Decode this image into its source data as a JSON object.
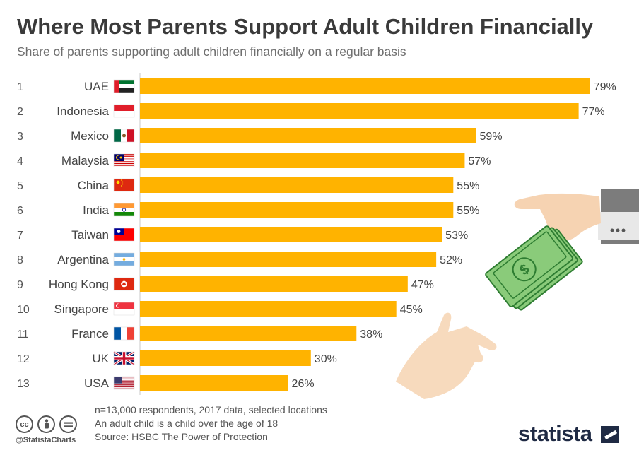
{
  "header": {
    "title": "Where Most Parents Support Adult Children Financially",
    "subtitle": "Share of parents supporting adult children financially on a regular basis"
  },
  "chart_data": {
    "type": "bar",
    "orientation": "horizontal",
    "ranks": [
      "1",
      "2",
      "3",
      "4",
      "5",
      "6",
      "7",
      "8",
      "9",
      "10",
      "11",
      "12",
      "13"
    ],
    "categories": [
      "UAE",
      "Indonesia",
      "Mexico",
      "Malaysia",
      "China",
      "India",
      "Taiwan",
      "Argentina",
      "Hong Kong",
      "Singapore",
      "France",
      "UK",
      "USA"
    ],
    "values": [
      79,
      77,
      59,
      57,
      55,
      55,
      53,
      52,
      47,
      45,
      38,
      30,
      26
    ],
    "value_labels": [
      "79%",
      "77%",
      "59%",
      "57%",
      "55%",
      "55%",
      "53%",
      "52%",
      "47%",
      "45%",
      "38%",
      "30%",
      "26%"
    ],
    "unit": "%",
    "xlim": [
      0,
      100
    ],
    "bar_color": "#FFB300",
    "grid": false,
    "legend": "none",
    "flags": [
      "uae-flag-icon",
      "indonesia-flag-icon",
      "mexico-flag-icon",
      "malaysia-flag-icon",
      "china-flag-icon",
      "india-flag-icon",
      "taiwan-flag-icon",
      "argentina-flag-icon",
      "hong-kong-flag-icon",
      "singapore-flag-icon",
      "france-flag-icon",
      "uk-flag-icon",
      "usa-flag-icon"
    ]
  },
  "footer": {
    "note1": "n=13,000 respondents, 2017 data, selected locations",
    "note2": "An adult child is a child over the age of 18",
    "source": "Source: HSBC The Power of Protection",
    "handle": "@StatistaCharts",
    "brand": "statista",
    "cc_icons": [
      "creative-commons-icon",
      "attribution-icon",
      "no-derivatives-icon"
    ]
  },
  "illustration": {
    "name": "hands-passing-money-illustration",
    "colors": {
      "skin": "#F6D3B2",
      "sleeve": "#7C7C7C",
      "cuff": "#E8E8E8",
      "money": "#8ACB7A",
      "money_dark": "#2E7D32"
    }
  }
}
